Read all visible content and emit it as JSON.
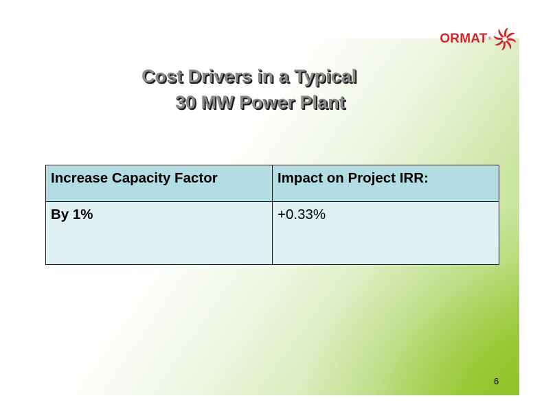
{
  "logo": {
    "text": "ORMAT",
    "registered": "®",
    "brand_color": "#d8232a"
  },
  "slide": {
    "title_line1": "Cost Drivers in a Typical",
    "title_line2": "30 MW Power Plant",
    "page_number": "6"
  },
  "table": {
    "headers": [
      "Increase Capacity Factor",
      "Impact on Project IRR:"
    ],
    "rows": [
      [
        "By 1%",
        "+0.33%"
      ]
    ],
    "header_color": "#b2dde2",
    "cell_color": "#def0f1"
  },
  "background": {
    "accent": "#86be1a"
  }
}
